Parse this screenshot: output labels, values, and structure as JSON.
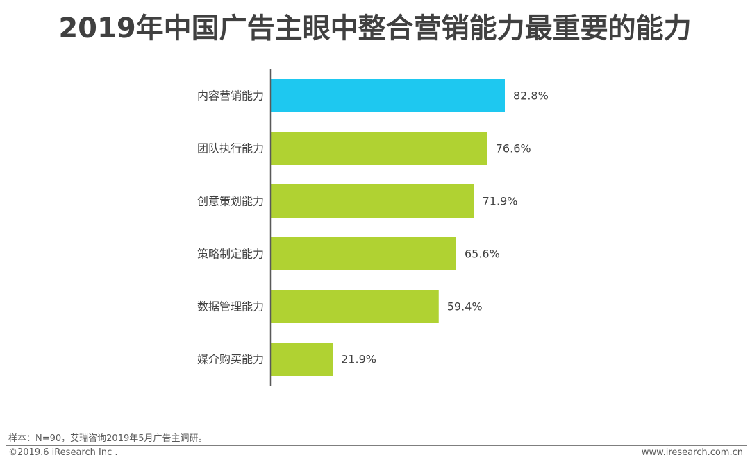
{
  "title": "2019年中国广告主眼中整合营销能力最重要的能力",
  "chart_data": {
    "type": "bar",
    "orientation": "horizontal",
    "categories": [
      "内容营销能力",
      "团队执行能力",
      "创意策划能力",
      "策略制定能力",
      "数据管理能力",
      "媒介购买能力"
    ],
    "values": [
      82.8,
      76.6,
      71.9,
      65.6,
      59.4,
      21.9
    ],
    "value_labels": [
      "82.8%",
      "76.6%",
      "71.9%",
      "65.6%",
      "59.4%",
      "21.9%"
    ],
    "unit": "%",
    "xlim": [
      0,
      100
    ],
    "grid": false,
    "colors": [
      "#1ec8f0",
      "#b0d232",
      "#b0d232",
      "#b0d232",
      "#b0d232",
      "#b0d232"
    ],
    "highlight_color": "#1ec8f0",
    "default_color": "#b0d232"
  },
  "footer": {
    "note": "样本：N=90，艾瑞咨询2019年5月广告主调研。",
    "copyright": "©2019.6 iResearch Inc .",
    "url": "www.iresearch.com.cn"
  }
}
